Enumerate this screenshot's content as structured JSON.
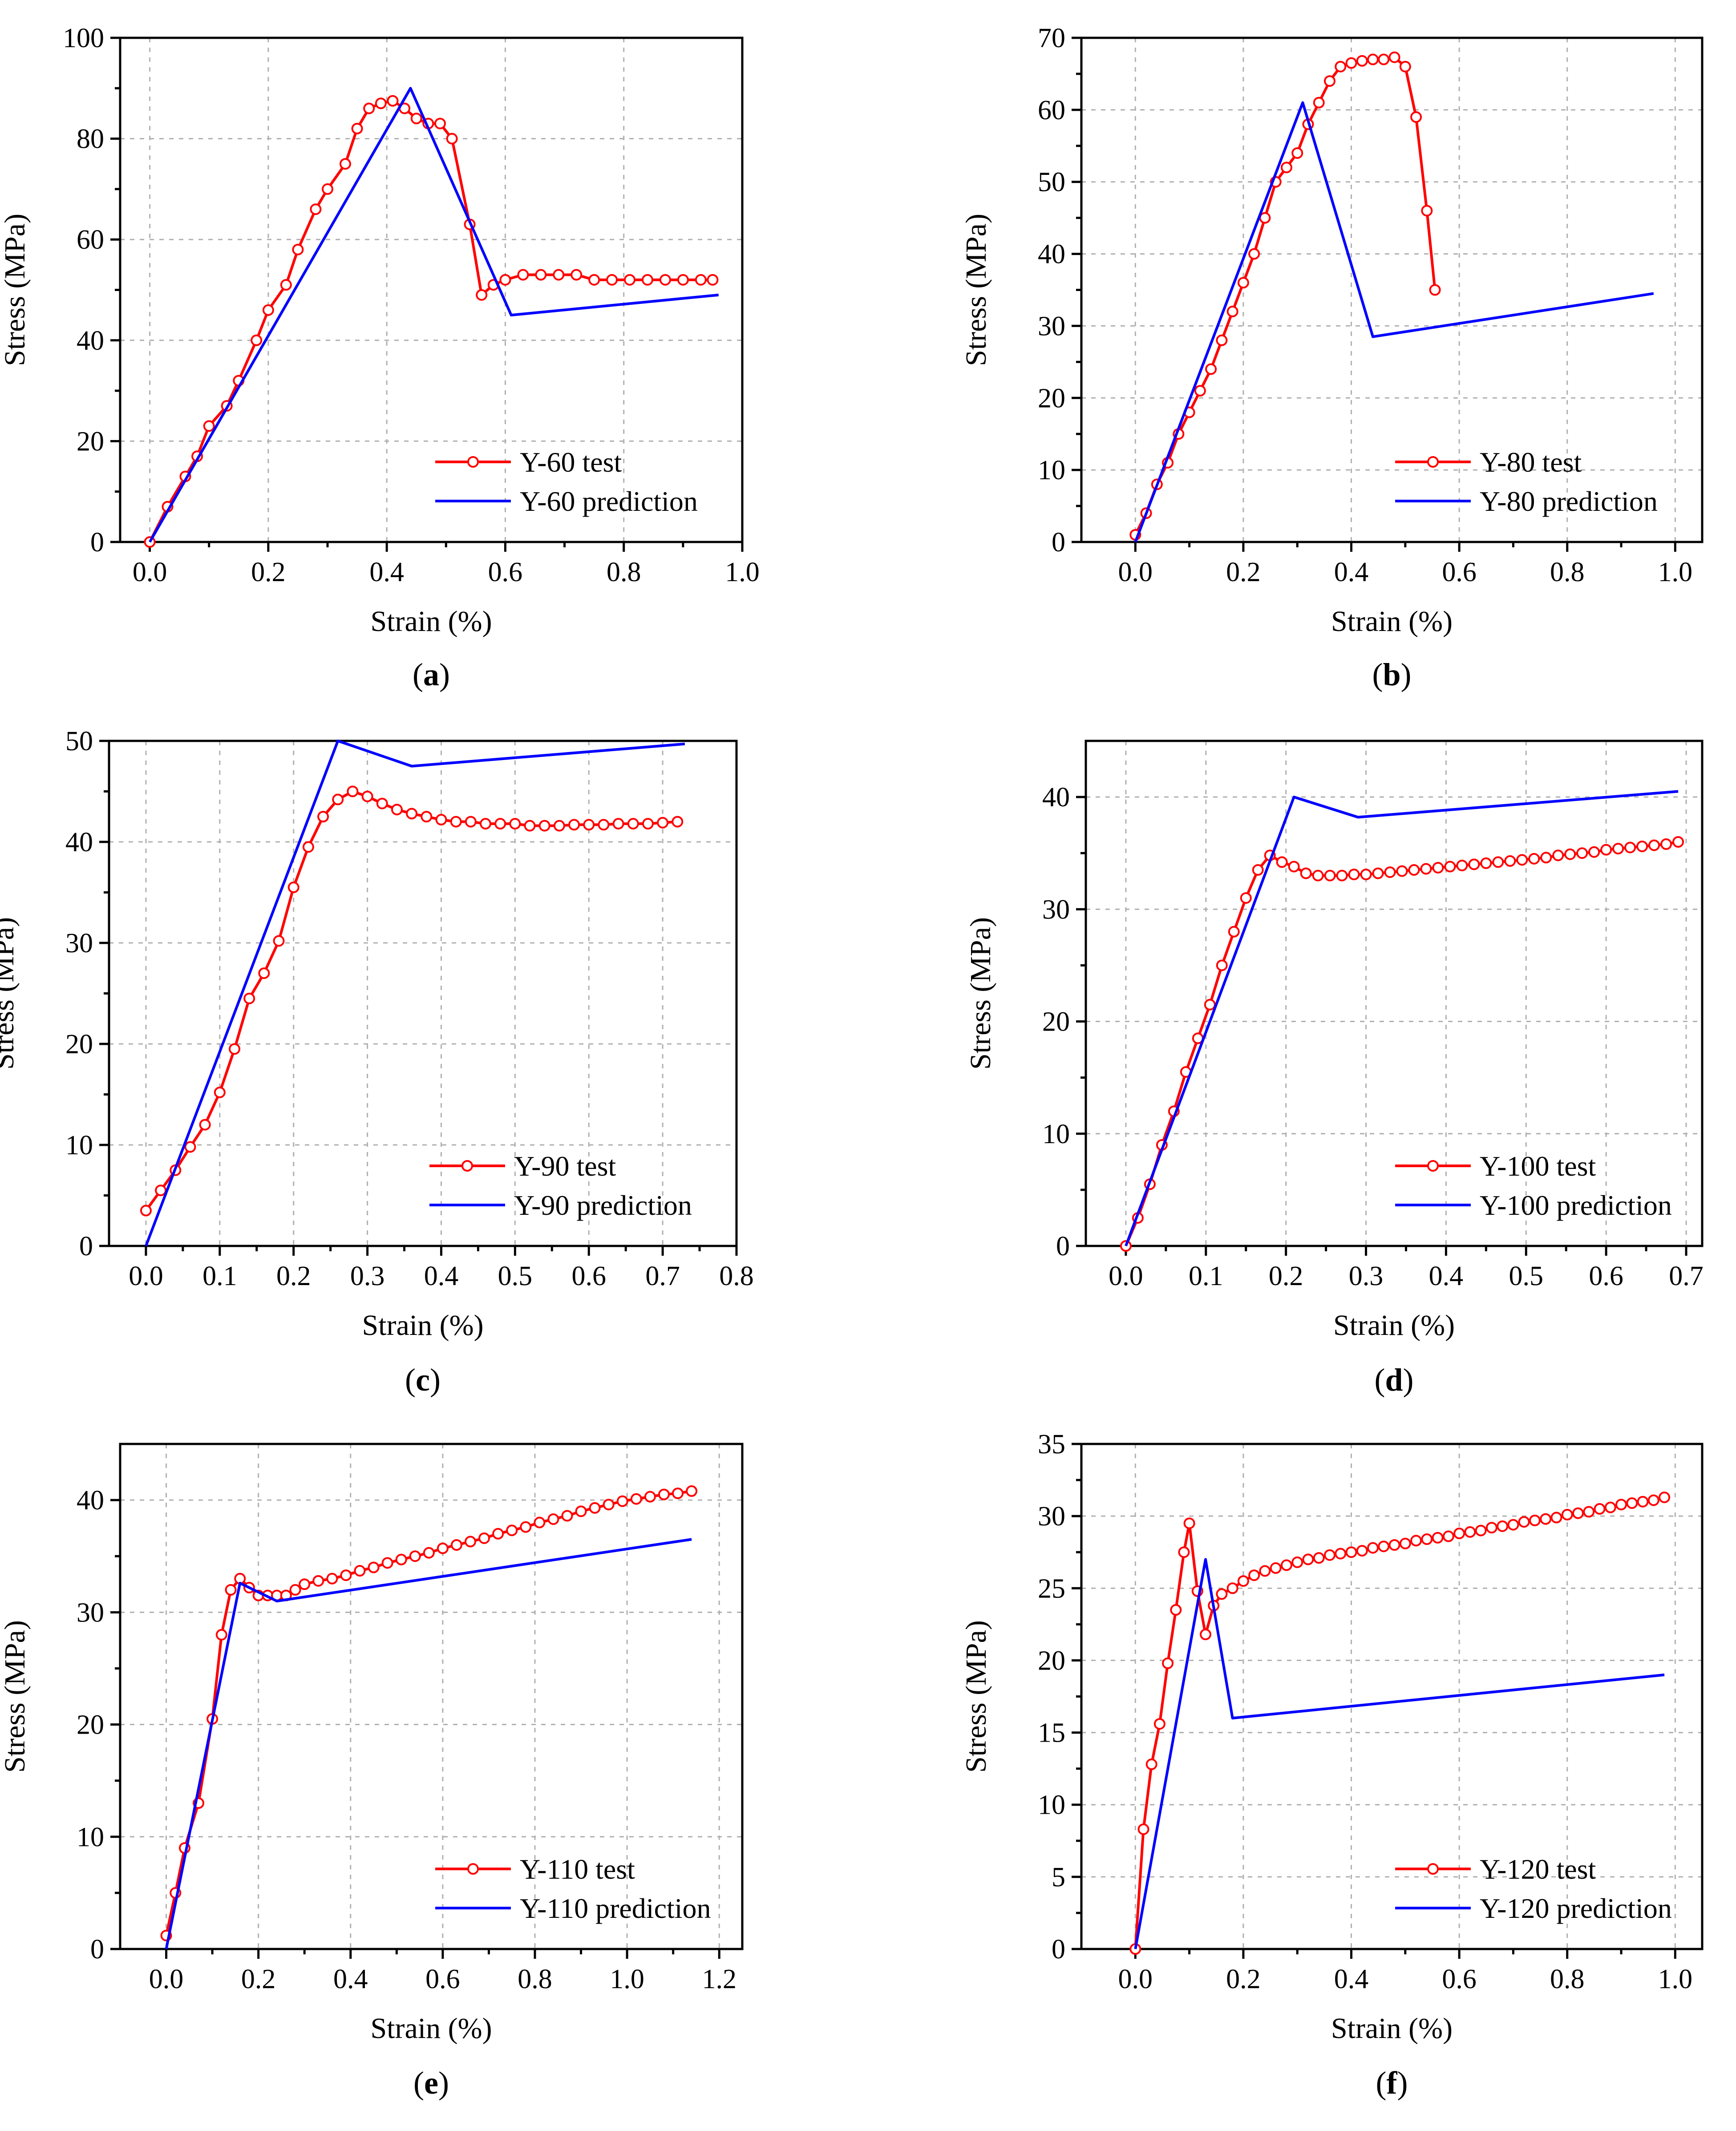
{
  "chart_data": [
    {
      "panel": "a",
      "type": "line",
      "xlabel": "Strain (%)",
      "ylabel": "Stress (MPa)",
      "xlim": [
        -0.05,
        1.0
      ],
      "ylim": [
        0,
        100
      ],
      "xticks": [
        0.0,
        0.2,
        0.4,
        0.6,
        0.8,
        1.0
      ],
      "yticks": [
        0,
        20,
        40,
        60,
        80,
        100
      ],
      "xtick_labels": [
        "0.0",
        "0.2",
        "0.4",
        "0.6",
        "0.8",
        "1.0"
      ],
      "ytick_labels": [
        "0",
        "20",
        "40",
        "60",
        "80",
        "100"
      ],
      "caption": "a",
      "series": [
        {
          "name": "Y-60 test",
          "color": "#ff0000",
          "marker": "circle",
          "x": [
            0.0,
            0.03,
            0.06,
            0.08,
            0.1,
            0.13,
            0.15,
            0.18,
            0.2,
            0.23,
            0.25,
            0.28,
            0.3,
            0.33,
            0.35,
            0.37,
            0.39,
            0.41,
            0.43,
            0.45,
            0.47,
            0.49,
            0.51,
            0.54,
            0.56,
            0.58,
            0.6,
            0.63,
            0.66,
            0.69,
            0.72,
            0.75,
            0.78,
            0.81,
            0.84,
            0.87,
            0.9,
            0.93,
            0.95
          ],
          "y": [
            0,
            7,
            13,
            17,
            23,
            27,
            32,
            40,
            46,
            51,
            58,
            66,
            70,
            75,
            82,
            86,
            87,
            87.5,
            86,
            84,
            83,
            83,
            80,
            63,
            49,
            51,
            52,
            53,
            53,
            53,
            53,
            52,
            52,
            52,
            52,
            52,
            52,
            52,
            52
          ]
        },
        {
          "name": "Y-60 prediction",
          "color": "#0000ff",
          "marker": "none",
          "x": [
            0.0,
            0.44,
            0.61,
            0.96
          ],
          "y": [
            0,
            90,
            45,
            49
          ]
        }
      ]
    },
    {
      "panel": "b",
      "type": "line",
      "xlabel": "Strain (%)",
      "ylabel": "Stress (MPa)",
      "xlim": [
        -0.1,
        1.05
      ],
      "ylim": [
        0,
        70
      ],
      "xticks": [
        0.0,
        0.2,
        0.4,
        0.6,
        0.8,
        1.0
      ],
      "yticks": [
        0,
        10,
        20,
        30,
        40,
        50,
        60,
        70
      ],
      "xtick_labels": [
        "0.0",
        "0.2",
        "0.4",
        "0.6",
        "0.8",
        "1.0"
      ],
      "ytick_labels": [
        "0",
        "10",
        "20",
        "30",
        "40",
        "50",
        "60",
        "70"
      ],
      "caption": "b",
      "series": [
        {
          "name": "Y-80 test",
          "color": "#ff0000",
          "marker": "circle",
          "x": [
            0.0,
            0.02,
            0.04,
            0.06,
            0.08,
            0.1,
            0.12,
            0.14,
            0.16,
            0.18,
            0.2,
            0.22,
            0.24,
            0.26,
            0.28,
            0.3,
            0.32,
            0.34,
            0.36,
            0.38,
            0.4,
            0.42,
            0.44,
            0.46,
            0.48,
            0.5,
            0.52,
            0.54,
            0.555
          ],
          "y": [
            1,
            4,
            8,
            11,
            15,
            18,
            21,
            24,
            28,
            32,
            36,
            40,
            45,
            50,
            52,
            54,
            58,
            61,
            64,
            66,
            66.5,
            66.8,
            67,
            67,
            67.3,
            66,
            59,
            46,
            35
          ]
        },
        {
          "name": "Y-80 prediction",
          "color": "#0000ff",
          "marker": "none",
          "x": [
            0.0,
            0.31,
            0.44,
            0.96
          ],
          "y": [
            0,
            61,
            28.5,
            34.5
          ]
        }
      ]
    },
    {
      "panel": "c",
      "type": "line",
      "xlabel": "Strain (%)",
      "ylabel": "Stress (MPa)",
      "xlim": [
        -0.05,
        0.8
      ],
      "ylim": [
        0,
        50
      ],
      "xticks": [
        0.0,
        0.1,
        0.2,
        0.3,
        0.4,
        0.5,
        0.6,
        0.7,
        0.8
      ],
      "yticks": [
        0,
        10,
        20,
        30,
        40,
        50
      ],
      "xtick_labels": [
        "0.0",
        "0.1",
        "0.2",
        "0.3",
        "0.4",
        "0.5",
        "0.6",
        "0.7",
        "0.8"
      ],
      "ytick_labels": [
        "0",
        "10",
        "20",
        "30",
        "40",
        "50"
      ],
      "caption": "c",
      "series": [
        {
          "name": "Y-90 test",
          "color": "#ff0000",
          "marker": "circle",
          "x": [
            0.0,
            0.02,
            0.04,
            0.06,
            0.08,
            0.1,
            0.12,
            0.14,
            0.16,
            0.18,
            0.2,
            0.22,
            0.24,
            0.26,
            0.28,
            0.3,
            0.32,
            0.34,
            0.36,
            0.38,
            0.4,
            0.42,
            0.44,
            0.46,
            0.48,
            0.5,
            0.52,
            0.54,
            0.56,
            0.58,
            0.6,
            0.62,
            0.64,
            0.66,
            0.68,
            0.7,
            0.72
          ],
          "y": [
            3.5,
            5.5,
            7.5,
            9.8,
            12,
            15.2,
            19.5,
            24.5,
            27,
            30.2,
            35.5,
            39.5,
            42.5,
            44.2,
            45,
            44.5,
            43.8,
            43.2,
            42.8,
            42.5,
            42.2,
            42,
            42,
            41.8,
            41.8,
            41.8,
            41.6,
            41.6,
            41.6,
            41.7,
            41.7,
            41.7,
            41.8,
            41.8,
            41.8,
            41.9,
            42
          ]
        },
        {
          "name": "Y-90 prediction",
          "color": "#0000ff",
          "marker": "none",
          "x": [
            0.0,
            0.26,
            0.36,
            0.73
          ],
          "y": [
            0,
            50,
            47.5,
            49.7
          ]
        }
      ]
    },
    {
      "panel": "d",
      "type": "line",
      "xlabel": "Strain (%)",
      "ylabel": "Stress (MPa)",
      "xlim": [
        -0.05,
        0.72
      ],
      "ylim": [
        0,
        45
      ],
      "xticks": [
        0.0,
        0.1,
        0.2,
        0.3,
        0.4,
        0.5,
        0.6,
        0.7
      ],
      "yticks": [
        0,
        10,
        20,
        30,
        40
      ],
      "xtick_labels": [
        "0.0",
        "0.1",
        "0.2",
        "0.3",
        "0.4",
        "0.5",
        "0.6",
        "0.7"
      ],
      "ytick_labels": [
        "0",
        "10",
        "20",
        "30",
        "40"
      ],
      "caption": "d",
      "series": [
        {
          "name": "Y-100 test",
          "color": "#ff0000",
          "marker": "circle",
          "x": [
            0.0,
            0.015,
            0.03,
            0.045,
            0.06,
            0.075,
            0.09,
            0.105,
            0.12,
            0.135,
            0.15,
            0.165,
            0.18,
            0.195,
            0.21,
            0.225,
            0.24,
            0.255,
            0.27,
            0.285,
            0.3,
            0.315,
            0.33,
            0.345,
            0.36,
            0.375,
            0.39,
            0.405,
            0.42,
            0.435,
            0.45,
            0.465,
            0.48,
            0.495,
            0.51,
            0.525,
            0.54,
            0.555,
            0.57,
            0.585,
            0.6,
            0.615,
            0.63,
            0.645,
            0.66,
            0.675,
            0.69
          ],
          "y": [
            0,
            2.5,
            5.5,
            9,
            12,
            15.5,
            18.5,
            21.5,
            25,
            28,
            31,
            33.5,
            34.8,
            34.2,
            33.8,
            33.2,
            33,
            33,
            33,
            33.1,
            33.1,
            33.2,
            33.3,
            33.4,
            33.5,
            33.6,
            33.7,
            33.8,
            33.9,
            34,
            34.1,
            34.2,
            34.3,
            34.4,
            34.5,
            34.6,
            34.8,
            34.9,
            35,
            35.1,
            35.3,
            35.4,
            35.5,
            35.6,
            35.7,
            35.8,
            36
          ]
        },
        {
          "name": "Y-100 prediction",
          "color": "#0000ff",
          "marker": "none",
          "x": [
            0.0,
            0.21,
            0.29,
            0.69
          ],
          "y": [
            0,
            40,
            38.2,
            40.5
          ]
        }
      ]
    },
    {
      "panel": "e",
      "type": "line",
      "xlabel": "Strain (%)",
      "ylabel": "Stress (MPa)",
      "xlim": [
        -0.1,
        1.25
      ],
      "ylim": [
        0,
        45
      ],
      "xticks": [
        0.0,
        0.2,
        0.4,
        0.6,
        0.8,
        1.0,
        1.2
      ],
      "yticks": [
        0,
        10,
        20,
        30,
        40
      ],
      "xtick_labels": [
        "0.0",
        "0.2",
        "0.4",
        "0.6",
        "0.8",
        "1.0",
        "1.2"
      ],
      "ytick_labels": [
        "0",
        "10",
        "20",
        "30",
        "40"
      ],
      "caption": "e",
      "series": [
        {
          "name": "Y-110 test",
          "color": "#ff0000",
          "marker": "circle",
          "x": [
            0.0,
            0.02,
            0.04,
            0.07,
            0.1,
            0.12,
            0.14,
            0.16,
            0.18,
            0.2,
            0.22,
            0.24,
            0.26,
            0.28,
            0.3,
            0.33,
            0.36,
            0.39,
            0.42,
            0.45,
            0.48,
            0.51,
            0.54,
            0.57,
            0.6,
            0.63,
            0.66,
            0.69,
            0.72,
            0.75,
            0.78,
            0.81,
            0.84,
            0.87,
            0.9,
            0.93,
            0.96,
            0.99,
            1.02,
            1.05,
            1.08,
            1.11,
            1.14
          ],
          "y": [
            1.2,
            5,
            9,
            13,
            20.5,
            28,
            32,
            33,
            32.2,
            31.5,
            31.5,
            31.5,
            31.5,
            32,
            32.5,
            32.8,
            33,
            33.3,
            33.7,
            34,
            34.4,
            34.7,
            35,
            35.3,
            35.7,
            36,
            36.3,
            36.6,
            37,
            37.3,
            37.6,
            38,
            38.3,
            38.6,
            39,
            39.3,
            39.6,
            39.9,
            40.1,
            40.3,
            40.5,
            40.6,
            40.8
          ]
        },
        {
          "name": "Y-110 prediction",
          "color": "#0000ff",
          "marker": "none",
          "x": [
            0.0,
            0.16,
            0.24,
            1.14
          ],
          "y": [
            0,
            32.6,
            31,
            36.5
          ]
        }
      ]
    },
    {
      "panel": "f",
      "type": "line",
      "xlabel": "Strain (%)",
      "ylabel": "Stress (MPa)",
      "xlim": [
        -0.1,
        1.05
      ],
      "ylim": [
        0,
        35
      ],
      "xticks": [
        0.0,
        0.2,
        0.4,
        0.6,
        0.8,
        1.0
      ],
      "yticks": [
        0,
        5,
        10,
        15,
        20,
        25,
        30,
        35
      ],
      "xtick_labels": [
        "0.0",
        "0.2",
        "0.4",
        "0.6",
        "0.8",
        "1.0"
      ],
      "ytick_labels": [
        "0",
        "5",
        "10",
        "15",
        "20",
        "25",
        "30",
        "35"
      ],
      "caption": "f",
      "series": [
        {
          "name": "Y-120 test",
          "color": "#ff0000",
          "marker": "circle",
          "x": [
            0.0,
            0.015,
            0.03,
            0.045,
            0.06,
            0.075,
            0.09,
            0.1,
            0.115,
            0.13,
            0.145,
            0.16,
            0.18,
            0.2,
            0.22,
            0.24,
            0.26,
            0.28,
            0.3,
            0.32,
            0.34,
            0.36,
            0.38,
            0.4,
            0.42,
            0.44,
            0.46,
            0.48,
            0.5,
            0.52,
            0.54,
            0.56,
            0.58,
            0.6,
            0.62,
            0.64,
            0.66,
            0.68,
            0.7,
            0.72,
            0.74,
            0.76,
            0.78,
            0.8,
            0.82,
            0.84,
            0.86,
            0.88,
            0.9,
            0.92,
            0.94,
            0.96,
            0.98
          ],
          "y": [
            0,
            8.3,
            12.8,
            15.6,
            19.8,
            23.5,
            27.5,
            29.5,
            24.8,
            21.8,
            23.8,
            24.6,
            25,
            25.5,
            25.9,
            26.2,
            26.4,
            26.6,
            26.8,
            27,
            27.1,
            27.3,
            27.4,
            27.5,
            27.6,
            27.8,
            27.9,
            28,
            28.1,
            28.3,
            28.4,
            28.5,
            28.6,
            28.8,
            28.9,
            29,
            29.2,
            29.3,
            29.4,
            29.6,
            29.7,
            29.8,
            29.9,
            30.1,
            30.2,
            30.3,
            30.5,
            30.6,
            30.8,
            30.9,
            31,
            31.1,
            31.3
          ]
        },
        {
          "name": "Y-120 prediction",
          "color": "#0000ff",
          "marker": "none",
          "x": [
            0.0,
            0.13,
            0.18,
            0.98
          ],
          "y": [
            0,
            27,
            16,
            19
          ]
        }
      ]
    }
  ]
}
